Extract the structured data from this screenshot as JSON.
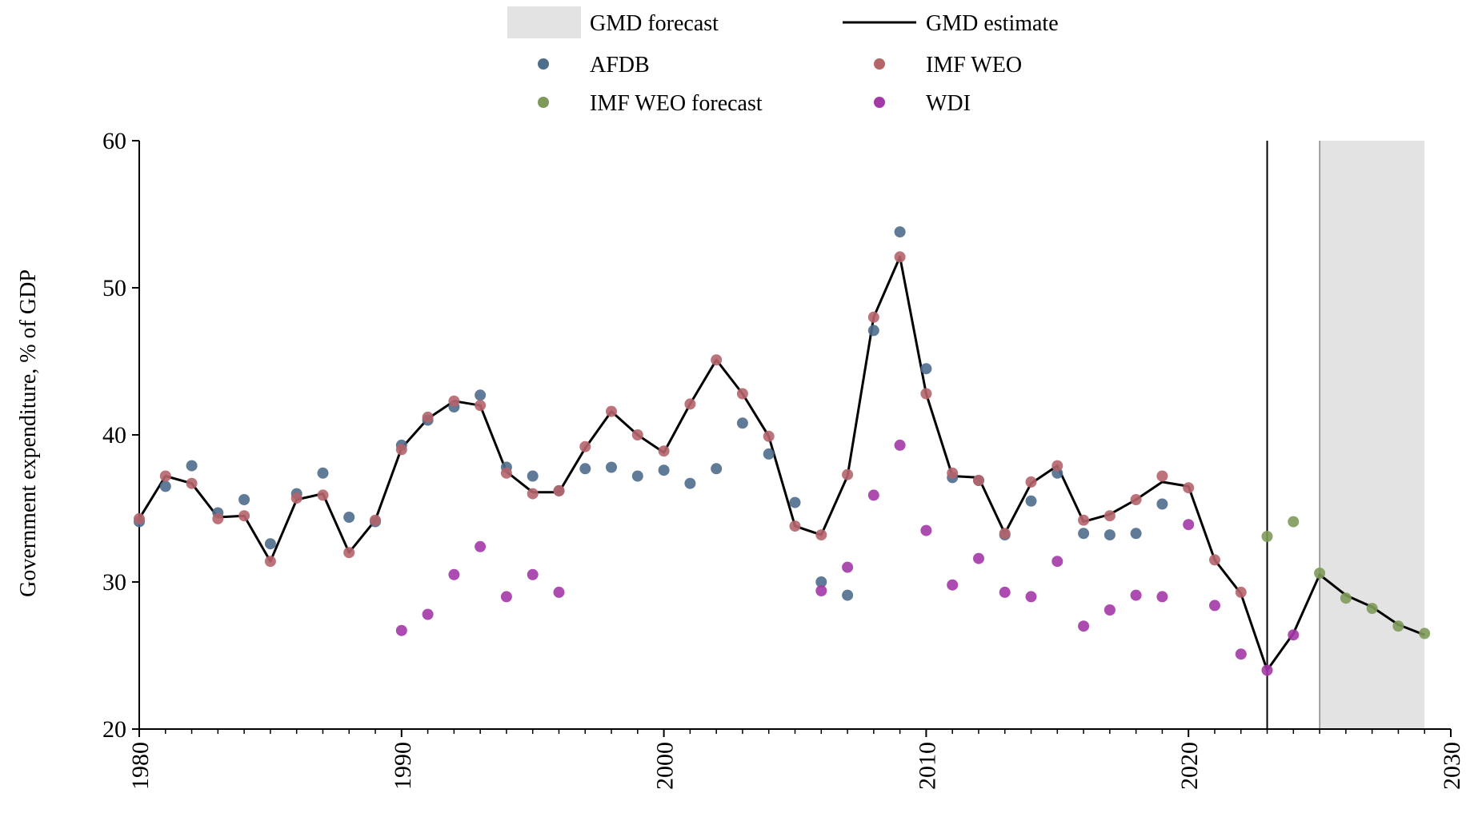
{
  "chart_data": {
    "type": "line",
    "xlabel": "",
    "ylabel": "Government expenditure, % of GDP",
    "xlim": [
      1980,
      2030
    ],
    "ylim": [
      20,
      60
    ],
    "x_ticks": [
      "1980",
      "1990",
      "2000",
      "2010",
      "2020",
      "2030"
    ],
    "y_ticks": [
      "20",
      "30",
      "40",
      "50",
      "60"
    ],
    "legend_position": "top",
    "forecast_band": [
      2025,
      2029
    ],
    "vertical_line_year": 2023,
    "colors": {
      "gmd_estimate": "#000000",
      "gmd_forecast": "#e3e3e3",
      "afdb": "#4f6d8c",
      "imf_weo": "#b5646a",
      "imf_weo_forecast": "#7d9a5a",
      "wdi": "#a339a8"
    },
    "legend": [
      {
        "key": "gmd_forecast",
        "label": "GMD forecast",
        "kind": "patch"
      },
      {
        "key": "gmd_estimate",
        "label": "GMD estimate",
        "kind": "line"
      },
      {
        "key": "afdb",
        "label": "AFDB",
        "kind": "marker"
      },
      {
        "key": "imf_weo",
        "label": "IMF WEO",
        "kind": "marker"
      },
      {
        "key": "imf_weo_forecast",
        "label": "IMF WEO forecast",
        "kind": "marker"
      },
      {
        "key": "wdi",
        "label": "WDI",
        "kind": "marker"
      }
    ],
    "series": [
      {
        "name": "GMD estimate",
        "key": "gmd_estimate",
        "kind": "line",
        "points": [
          [
            1980,
            34.3
          ],
          [
            1981,
            37.2
          ],
          [
            1982,
            36.7
          ],
          [
            1983,
            34.4
          ],
          [
            1984,
            34.5
          ],
          [
            1985,
            31.4
          ],
          [
            1986,
            35.6
          ],
          [
            1987,
            36.0
          ],
          [
            1988,
            32.0
          ],
          [
            1989,
            34.2
          ],
          [
            1990,
            39.1
          ],
          [
            1991,
            41.1
          ],
          [
            1992,
            42.3
          ],
          [
            1993,
            42.0
          ],
          [
            1994,
            37.5
          ],
          [
            1995,
            36.1
          ],
          [
            1996,
            36.1
          ],
          [
            1997,
            39.1
          ],
          [
            1998,
            41.6
          ],
          [
            1999,
            40.0
          ],
          [
            2000,
            38.8
          ],
          [
            2001,
            42.1
          ],
          [
            2002,
            45.1
          ],
          [
            2003,
            42.8
          ],
          [
            2004,
            39.9
          ],
          [
            2005,
            33.8
          ],
          [
            2006,
            33.2
          ],
          [
            2007,
            37.2
          ],
          [
            2008,
            48.0
          ],
          [
            2009,
            52.1
          ],
          [
            2010,
            42.8
          ],
          [
            2011,
            37.2
          ],
          [
            2012,
            37.1
          ],
          [
            2013,
            33.3
          ],
          [
            2014,
            36.7
          ],
          [
            2015,
            37.9
          ],
          [
            2016,
            34.1
          ],
          [
            2017,
            34.6
          ],
          [
            2018,
            35.6
          ],
          [
            2019,
            36.8
          ],
          [
            2020,
            36.5
          ],
          [
            2021,
            31.5
          ],
          [
            2022,
            29.2
          ],
          [
            2023,
            24.0
          ],
          [
            2024,
            26.5
          ],
          [
            2025,
            30.5
          ],
          [
            2026,
            29.1
          ],
          [
            2027,
            28.3
          ],
          [
            2028,
            27.1
          ],
          [
            2029,
            26.4
          ]
        ]
      },
      {
        "name": "AFDB",
        "key": "afdb",
        "kind": "scatter",
        "points": [
          [
            1980,
            34.1
          ],
          [
            1981,
            36.5
          ],
          [
            1982,
            37.9
          ],
          [
            1983,
            34.7
          ],
          [
            1984,
            35.6
          ],
          [
            1985,
            32.6
          ],
          [
            1986,
            36.0
          ],
          [
            1987,
            37.4
          ],
          [
            1988,
            34.4
          ],
          [
            1989,
            34.1
          ],
          [
            1990,
            39.3
          ],
          [
            1991,
            41.0
          ],
          [
            1992,
            41.9
          ],
          [
            1993,
            42.7
          ],
          [
            1994,
            37.8
          ],
          [
            1995,
            37.2
          ],
          [
            1996,
            36.2
          ],
          [
            1997,
            37.7
          ],
          [
            1998,
            37.8
          ],
          [
            1999,
            37.2
          ],
          [
            2000,
            37.6
          ],
          [
            2001,
            36.7
          ],
          [
            2002,
            37.7
          ],
          [
            2003,
            40.8
          ],
          [
            2004,
            38.7
          ],
          [
            2005,
            35.4
          ],
          [
            2006,
            30.0
          ],
          [
            2007,
            29.1
          ],
          [
            2008,
            47.1
          ],
          [
            2009,
            53.8
          ],
          [
            2010,
            44.5
          ],
          [
            2011,
            37.1
          ],
          [
            2012,
            36.9
          ],
          [
            2013,
            33.2
          ],
          [
            2014,
            35.5
          ],
          [
            2015,
            37.4
          ],
          [
            2016,
            33.3
          ],
          [
            2017,
            33.2
          ],
          [
            2018,
            33.3
          ],
          [
            2019,
            35.3
          ]
        ]
      },
      {
        "name": "IMF WEO",
        "key": "imf_weo",
        "kind": "scatter",
        "points": [
          [
            1980,
            34.3
          ],
          [
            1981,
            37.2
          ],
          [
            1982,
            36.7
          ],
          [
            1983,
            34.3
          ],
          [
            1984,
            34.5
          ],
          [
            1985,
            31.4
          ],
          [
            1986,
            35.7
          ],
          [
            1987,
            35.9
          ],
          [
            1988,
            32.0
          ],
          [
            1989,
            34.2
          ],
          [
            1990,
            39.0
          ],
          [
            1991,
            41.2
          ],
          [
            1992,
            42.3
          ],
          [
            1993,
            42.0
          ],
          [
            1994,
            37.4
          ],
          [
            1995,
            36.0
          ],
          [
            1996,
            36.2
          ],
          [
            1997,
            39.2
          ],
          [
            1998,
            41.6
          ],
          [
            1999,
            40.0
          ],
          [
            2000,
            38.9
          ],
          [
            2001,
            42.1
          ],
          [
            2002,
            45.1
          ],
          [
            2003,
            42.8
          ],
          [
            2004,
            39.9
          ],
          [
            2005,
            33.8
          ],
          [
            2006,
            33.2
          ],
          [
            2007,
            37.3
          ],
          [
            2008,
            48.0
          ],
          [
            2009,
            52.1
          ],
          [
            2010,
            42.8
          ],
          [
            2011,
            37.4
          ],
          [
            2012,
            36.9
          ],
          [
            2013,
            33.3
          ],
          [
            2014,
            36.8
          ],
          [
            2015,
            37.9
          ],
          [
            2016,
            34.2
          ],
          [
            2017,
            34.5
          ],
          [
            2018,
            35.6
          ],
          [
            2019,
            37.2
          ],
          [
            2020,
            36.4
          ],
          [
            2021,
            31.5
          ],
          [
            2022,
            29.3
          ]
        ]
      },
      {
        "name": "IMF WEO forecast",
        "key": "imf_weo_forecast",
        "kind": "scatter",
        "points": [
          [
            2023,
            33.1
          ],
          [
            2024,
            34.1
          ],
          [
            2025,
            30.6
          ],
          [
            2026,
            28.9
          ],
          [
            2027,
            28.2
          ],
          [
            2028,
            27.0
          ],
          [
            2029,
            26.5
          ]
        ]
      },
      {
        "name": "WDI",
        "key": "wdi",
        "kind": "scatter",
        "points": [
          [
            1990,
            26.7
          ],
          [
            1991,
            27.8
          ],
          [
            1992,
            30.5
          ],
          [
            1993,
            32.4
          ],
          [
            1994,
            29.0
          ],
          [
            1995,
            30.5
          ],
          [
            1996,
            29.3
          ],
          [
            2006,
            29.4
          ],
          [
            2007,
            31.0
          ],
          [
            2008,
            35.9
          ],
          [
            2009,
            39.3
          ],
          [
            2010,
            33.5
          ],
          [
            2011,
            29.8
          ],
          [
            2012,
            31.6
          ],
          [
            2013,
            29.3
          ],
          [
            2014,
            29.0
          ],
          [
            2015,
            31.4
          ],
          [
            2016,
            27.0
          ],
          [
            2017,
            28.1
          ],
          [
            2018,
            29.1
          ],
          [
            2019,
            29.0
          ],
          [
            2020,
            33.9
          ],
          [
            2021,
            28.4
          ],
          [
            2022,
            25.1
          ],
          [
            2023,
            24.0
          ],
          [
            2024,
            26.4
          ]
        ]
      }
    ]
  }
}
